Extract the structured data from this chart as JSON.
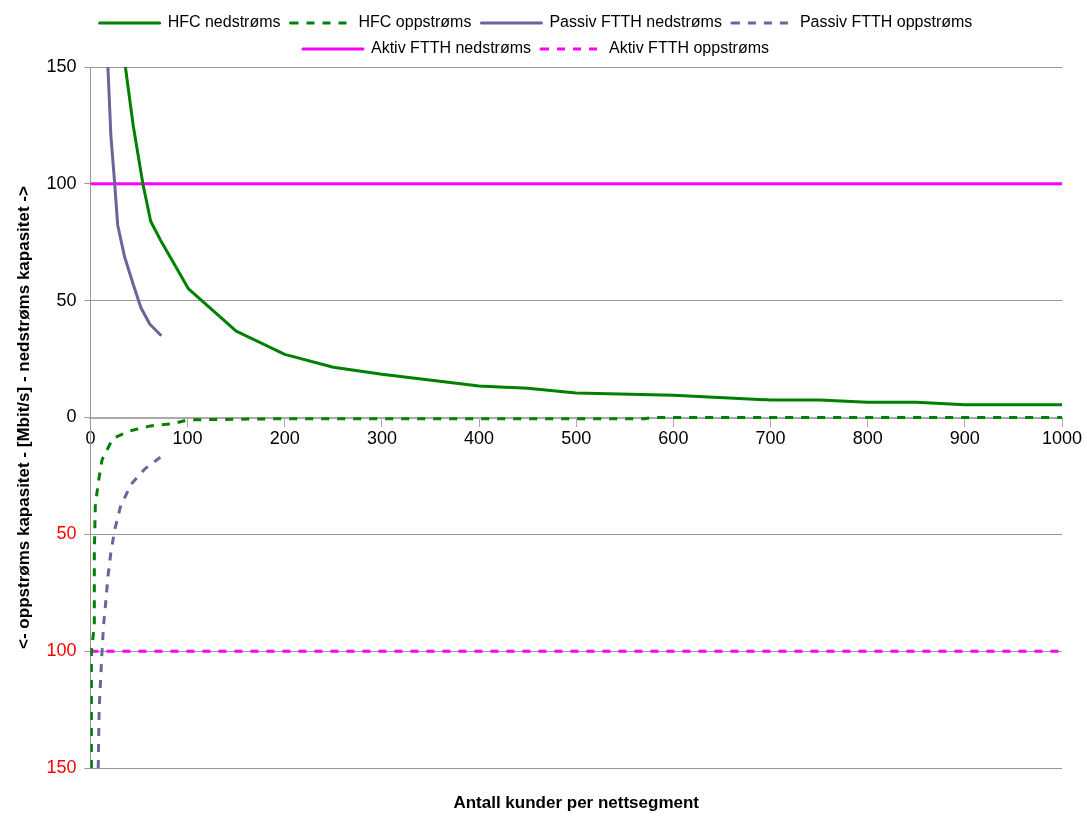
{
  "chart_data": {
    "type": "line",
    "xlabel": "Antall kunder per nettsegment",
    "ylabel": "<- oppstrøms kapasitet - [Mbit/s] - nedstrøms kapasitet ->",
    "xlim": [
      0,
      1000
    ],
    "xticks": [
      0,
      100,
      200,
      300,
      400,
      500,
      600,
      700,
      800,
      900,
      1000
    ],
    "ylim": [
      -150,
      150
    ],
    "yticks": [
      {
        "value": -150,
        "label": "150"
      },
      {
        "value": -100,
        "label": "100"
      },
      {
        "value": -50,
        "label": "50"
      },
      0,
      50,
      100,
      150
    ],
    "grid": "y",
    "legend": "top",
    "marker": "none",
    "series": [
      {
        "name": "HFC nedstrøms",
        "color": "#008000",
        "line_style": "solid",
        "x": [
          36,
          44,
          54,
          62,
          72,
          101,
          150,
          200,
          250,
          300,
          400,
          450,
          500,
          600,
          700,
          750,
          800,
          850,
          900,
          1000
        ],
        "values": [
          150,
          125,
          100,
          84,
          76,
          55,
          37,
          27,
          21.5,
          18.5,
          13.5,
          12.5,
          10.5,
          9.5,
          7.5,
          7.5,
          6.5,
          6.5,
          5.5,
          5.5
        ]
      },
      {
        "name": "HFC oppstrøms",
        "color": "#008000",
        "line_style": "dashed",
        "x": [
          1,
          1,
          4,
          4,
          5,
          8,
          12,
          23,
          40,
          62,
          85,
          100,
          200,
          300,
          400,
          500,
          570,
          580,
          700,
          800,
          900,
          1000
        ],
        "values": [
          -150,
          -100,
          -89,
          -58,
          -38,
          -28,
          -18,
          -9,
          -5.8,
          -3.6,
          -2.7,
          -1,
          -0.5,
          -0.5,
          -0.5,
          -0.5,
          -0.5,
          0,
          0,
          0,
          0,
          0
        ]
      },
      {
        "name": "Passiv FTTH nedstrøms",
        "color": "#666699",
        "line_style": "solid",
        "x": [
          18,
          21,
          25,
          28,
          35,
          44,
          52,
          61,
          73
        ],
        "values": [
          150,
          121,
          100,
          82.5,
          69,
          57,
          47,
          40,
          35
        ]
      },
      {
        "name": "Passiv FTTH oppstrøms",
        "color": "#666699",
        "line_style": "dashed",
        "x": [
          8,
          9,
          11.5,
          13.5,
          16,
          18,
          21,
          25,
          31,
          42,
          56,
          72
        ],
        "values": [
          -150,
          -124.5,
          -103.5,
          -89,
          -78,
          -68,
          -58,
          -48,
          -38,
          -28.5,
          -22,
          -17
        ]
      },
      {
        "name": "Aktiv FTTH nedstrøms",
        "color": "#ff00ff",
        "line_style": "solid",
        "x": [
          0,
          1000
        ],
        "values": [
          100,
          100
        ]
      },
      {
        "name": "Aktiv FTTH oppstrøms",
        "color": "#ff00ff",
        "line_style": "dashed",
        "x": [
          0,
          1000
        ],
        "values": [
          -100,
          -100
        ]
      }
    ]
  }
}
